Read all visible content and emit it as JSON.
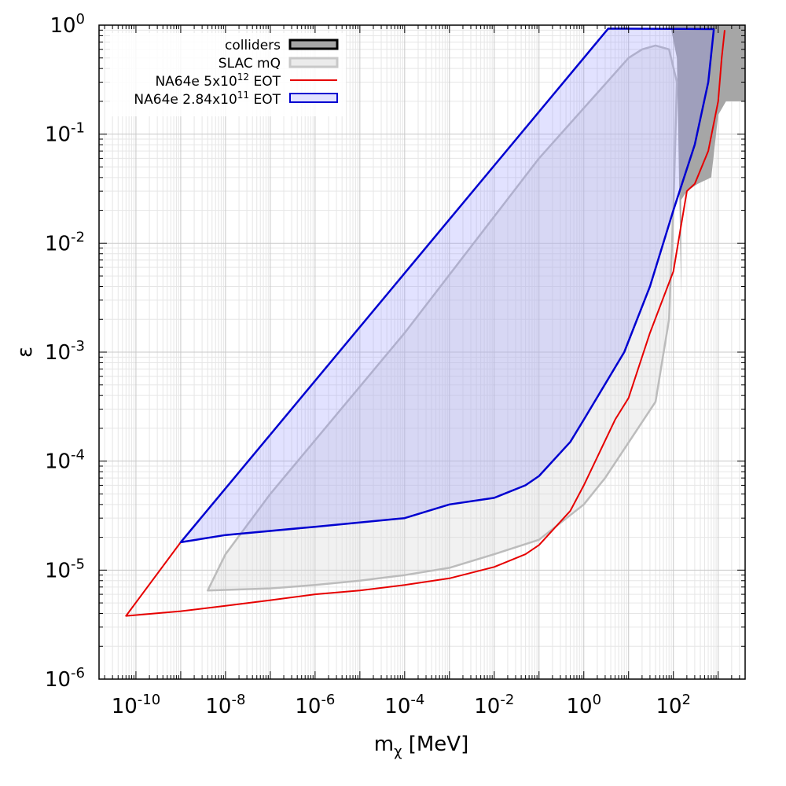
{
  "chart_data": {
    "type": "area",
    "title": "",
    "xlabel": {
      "main": "m",
      "sub": "χ",
      "unit": " [MeV]"
    },
    "ylabel": "ε",
    "xscale": "log",
    "yscale": "log",
    "xlim": [
      1.5e-11,
      4000
    ],
    "ylim": [
      1e-06,
      1
    ],
    "grid": true,
    "legend_position": "top-left",
    "x_tick_labels": [
      {
        "value": 1e-10,
        "base": "10",
        "exp": "-10"
      },
      {
        "value": 1e-08,
        "base": "10",
        "exp": "-8"
      },
      {
        "value": 1e-06,
        "base": "10",
        "exp": "-6"
      },
      {
        "value": 0.0001,
        "base": "10",
        "exp": "-4"
      },
      {
        "value": 0.01,
        "base": "10",
        "exp": "-2"
      },
      {
        "value": 1,
        "base": "10",
        "exp": "0"
      },
      {
        "value": 100,
        "base": "10",
        "exp": "2"
      }
    ],
    "y_tick_labels": [
      {
        "value": 1,
        "base": "10",
        "exp": "0"
      },
      {
        "value": 0.1,
        "base": "10",
        "exp": "-1"
      },
      {
        "value": 0.01,
        "base": "10",
        "exp": "-2"
      },
      {
        "value": 0.001,
        "base": "10",
        "exp": "-3"
      },
      {
        "value": 0.0001,
        "base": "10",
        "exp": "-4"
      },
      {
        "value": 1e-05,
        "base": "10",
        "exp": "-5"
      },
      {
        "value": 1e-06,
        "base": "10",
        "exp": "-6"
      }
    ],
    "series": [
      {
        "name": "colliders",
        "legend_text": "colliders",
        "style": "filled",
        "fill": "#a6a6a6",
        "stroke": "#000000",
        "points": [
          [
            90,
            1.0
          ],
          [
            4000,
            1.0
          ],
          [
            4000,
            0.2
          ],
          [
            1500,
            0.2
          ],
          [
            1000,
            0.15
          ],
          [
            700,
            0.04
          ],
          [
            350,
            0.035
          ],
          [
            200,
            0.03
          ],
          [
            150,
            0.025
          ],
          [
            150,
            0.003
          ],
          [
            120,
            0.5
          ],
          [
            90,
            0.9
          ]
        ]
      },
      {
        "name": "SLAC mQ",
        "legend_text": "SLAC mQ",
        "style": "filled",
        "fill": "rgba(215,215,215,0.35)",
        "stroke": "#bcbcbc",
        "points": [
          [
            4e-09,
            6.5e-06
          ],
          [
            1e-08,
            1.4e-05
          ],
          [
            1e-07,
            5e-05
          ],
          [
            0.0001,
            0.0015
          ],
          [
            0.1,
            0.06
          ],
          [
            10,
            0.5
          ],
          [
            20,
            0.6
          ],
          [
            40,
            0.65
          ],
          [
            80,
            0.6
          ],
          [
            120,
            0.3
          ],
          [
            100,
            0.02
          ],
          [
            80,
            0.002
          ],
          [
            40,
            0.00035
          ],
          [
            3,
            7e-05
          ],
          [
            1,
            4e-05
          ],
          [
            0.1,
            1.9e-05
          ],
          [
            0.01,
            1.4e-05
          ],
          [
            0.001,
            1.05e-05
          ],
          [
            0.0001,
            9e-06
          ],
          [
            1e-05,
            8e-06
          ],
          [
            1e-06,
            7.3e-06
          ],
          [
            1e-07,
            6.8e-06
          ],
          [
            4e-09,
            6.5e-06
          ]
        ]
      },
      {
        "name": "NA64e 5x10^12 EOT",
        "legend_text": {
          "prefix": "NA64e 5x10",
          "sup": "12",
          "suffix": " EOT"
        },
        "style": "line",
        "stroke": "#e60000",
        "points": [
          [
            6e-11,
            3.8e-06
          ],
          [
            1e-09,
            1.8e-05
          ],
          [
            1e-09,
            1.8e-05
          ],
          [
            6e-11,
            3.8e-06
          ],
          [
            1e-09,
            4.2e-06
          ],
          [
            1e-08,
            4.7e-06
          ],
          [
            1e-07,
            5.3e-06
          ],
          [
            1e-06,
            6e-06
          ],
          [
            1e-05,
            6.5e-06
          ],
          [
            0.0001,
            7.3e-06
          ],
          [
            0.001,
            8.4e-06
          ],
          [
            0.01,
            1.07e-05
          ],
          [
            0.05,
            1.4e-05
          ],
          [
            0.1,
            1.7e-05
          ],
          [
            0.5,
            3.5e-05
          ],
          [
            1,
            6e-05
          ],
          [
            5,
            0.00024
          ],
          [
            10,
            0.00038
          ],
          [
            30,
            0.0015
          ],
          [
            100,
            0.0055
          ],
          [
            200,
            0.03
          ],
          [
            300,
            0.035
          ],
          [
            600,
            0.07
          ],
          [
            1000,
            0.2
          ],
          [
            1200,
            0.5
          ],
          [
            1400,
            0.9
          ]
        ]
      },
      {
        "name": "NA64e 2.84x10^11 EOT",
        "legend_text": {
          "prefix": "NA64e 2.84x10",
          "sup": "11",
          "suffix": " EOT"
        },
        "style": "filled",
        "fill": "rgba(140,140,255,0.25)",
        "stroke": "#0000d0",
        "points": [
          [
            1e-09,
            1.8e-05
          ],
          [
            3.5,
            0.93
          ],
          [
            800,
            0.92
          ],
          [
            600,
            0.3
          ],
          [
            300,
            0.08
          ],
          [
            100,
            0.02
          ],
          [
            30,
            0.004
          ],
          [
            8,
            0.001
          ],
          [
            1,
            0.00024
          ],
          [
            0.5,
            0.00015
          ],
          [
            0.1,
            7.3e-05
          ],
          [
            0.05,
            6e-05
          ],
          [
            0.01,
            4.6e-05
          ],
          [
            0.001,
            4e-05
          ],
          [
            0.0001,
            3e-05
          ],
          [
            1e-06,
            2.5e-05
          ],
          [
            1e-08,
            2.1e-05
          ],
          [
            1e-09,
            1.8e-05
          ]
        ]
      }
    ]
  }
}
